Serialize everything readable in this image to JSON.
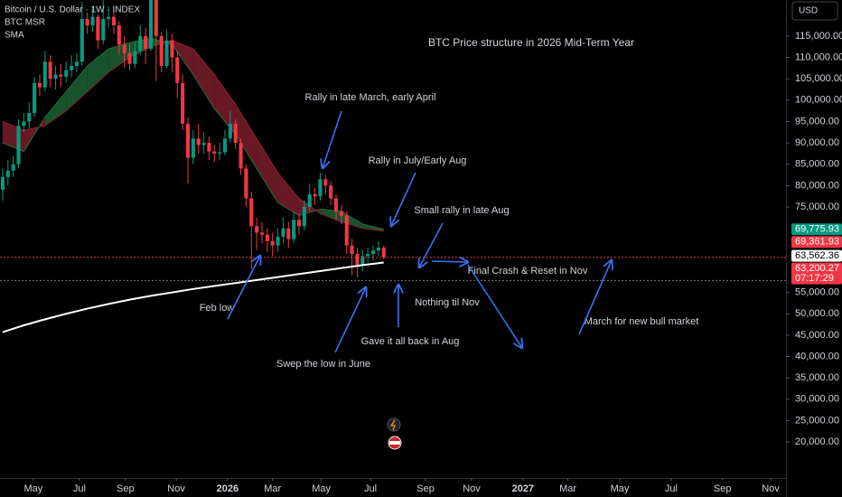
{
  "chart_data": {
    "type": "candlestick",
    "symbol": "Bitcoin / U.S. Dollar · 1W · INDEX",
    "currency": "USD",
    "title": "BTC Price structure in 2026 Mid-Term Year",
    "up_color": "#089981",
    "down_color": "#f23645",
    "open": [
      79000,
      82000,
      83500,
      85000,
      94000,
      95000,
      97000,
      104000,
      103000,
      109000,
      105000,
      106000,
      105500,
      107000,
      108000,
      109000,
      119000,
      117500,
      119500,
      114000,
      119000,
      119500,
      117500,
      113000,
      111000,
      108500,
      111500,
      115000,
      112000,
      123500,
      115000,
      108000,
      114000,
      110000,
      104000,
      94500,
      86500,
      91000,
      89500,
      90000,
      88000,
      87500,
      87800,
      91000,
      94500,
      90000,
      84000,
      77000,
      70500,
      69000,
      68500,
      67000,
      66000,
      68000,
      70000,
      67500,
      72000,
      70500,
      75000,
      78000,
      77500,
      81500,
      80000,
      77000,
      74000,
      73000,
      66000,
      64000,
      61500,
      63500,
      64000,
      64800,
      65500
    ],
    "high": [
      84000,
      86000,
      87000,
      95500,
      97000,
      99500,
      105500,
      106000,
      111500,
      110500,
      108000,
      108500,
      109000,
      110500,
      111000,
      123000,
      120500,
      122000,
      120000,
      124000,
      122000,
      121000,
      118500,
      115000,
      113000,
      113500,
      117500,
      117000,
      126000,
      124500,
      116000,
      116500,
      115500,
      111500,
      106000,
      96000,
      93000,
      94500,
      92500,
      91500,
      89500,
      90000,
      93000,
      97500,
      95500,
      91000,
      85000,
      78500,
      72500,
      71500,
      70000,
      69000,
      70000,
      72500,
      71500,
      74000,
      73500,
      76500,
      80500,
      79500,
      83000,
      82500,
      81000,
      78000,
      75500,
      74000,
      67500,
      65500,
      65000,
      65500,
      66000,
      67000,
      66000
    ],
    "low": [
      76500,
      80000,
      82000,
      84000,
      92500,
      93500,
      96000,
      101000,
      102000,
      103000,
      102500,
      103000,
      104000,
      105500,
      106500,
      108000,
      115500,
      116000,
      112000,
      113000,
      117000,
      115500,
      110500,
      107500,
      107000,
      107500,
      110500,
      108500,
      111500,
      104500,
      106500,
      107500,
      106500,
      100500,
      93000,
      80500,
      85000,
      87500,
      87500,
      86000,
      85500,
      86000,
      87000,
      90000,
      88500,
      82500,
      75000,
      60500,
      65000,
      66500,
      64500,
      63500,
      64500,
      66500,
      65500,
      66500,
      68500,
      69500,
      74000,
      75500,
      76500,
      78000,
      75500,
      72000,
      71000,
      64000,
      59000,
      58500,
      60000,
      62000,
      62500,
      63500,
      62800
    ],
    "close": [
      82000,
      83500,
      85000,
      94000,
      95000,
      97000,
      104000,
      103000,
      109000,
      105000,
      106000,
      105500,
      107000,
      108000,
      109000,
      119000,
      117500,
      119500,
      114000,
      119000,
      119500,
      117500,
      113000,
      111000,
      108500,
      111500,
      115000,
      112000,
      123500,
      115000,
      108000,
      114000,
      110000,
      104000,
      94500,
      86500,
      91000,
      89500,
      90000,
      88000,
      87500,
      87800,
      91000,
      94500,
      90000,
      84000,
      77000,
      70500,
      69000,
      68500,
      67000,
      66000,
      68000,
      70000,
      67500,
      72000,
      70500,
      75000,
      78000,
      77500,
      81500,
      80000,
      77000,
      74000,
      73000,
      66000,
      64000,
      61500,
      63500,
      64000,
      64800,
      65500,
      63200.27
    ],
    "indicators": [
      {
        "name": "BTC MSR",
        "x": [
          0,
          4,
          8,
          12,
          16,
          20,
          24,
          28,
          32,
          36,
          40,
          44,
          48,
          52,
          56,
          60,
          64,
          68,
          72
        ],
        "fast": [
          90000,
          88000,
          96000,
          102000,
          108000,
          112000,
          113500,
          114500,
          113000,
          106000,
          98000,
          92000,
          84000,
          76000,
          73000,
          74500,
          74000,
          71000,
          69775.93
        ],
        "slow": [
          95000,
          93000,
          94000,
          97500,
          102000,
          106500,
          110000,
          112500,
          114000,
          112000,
          106000,
          99000,
          91000,
          83000,
          77000,
          73500,
          71500,
          70000,
          69361.93
        ],
        "colors": [
          "#1f6e3a",
          "#8c2230"
        ]
      },
      {
        "name": "SMA",
        "x": [
          0,
          4,
          8,
          12,
          16,
          20,
          24,
          28,
          32,
          36,
          40,
          44,
          48,
          52,
          56,
          60,
          64,
          68,
          72
        ],
        "values": [
          45700,
          47300,
          48700,
          50000,
          51200,
          52300,
          53300,
          54200,
          55000,
          55800,
          56500,
          57200,
          57900,
          58600,
          59300,
          60000,
          60700,
          61400,
          62000
        ],
        "color": "#ffffff"
      }
    ],
    "reference_lines": [
      57800
    ],
    "price_labels": [
      {
        "value": 69775.93,
        "label": "69,775.93",
        "color": "#089981"
      },
      {
        "value": 69361.93,
        "label": "69,361.93",
        "color": "#f23645"
      },
      {
        "value": 63562.36,
        "label": "63,562.36",
        "color": "#ffffff"
      },
      {
        "value": 63200.27,
        "label": "63,200.27",
        "color": "#f23645",
        "countdown": "07:17:29"
      }
    ],
    "ylim": [
      11560,
      123440
    ],
    "yticks": [
      {
        "value": 20000,
        "label": "20,000.00"
      },
      {
        "value": 25000,
        "label": "25,000.00"
      },
      {
        "value": 30000,
        "label": "30,000.00"
      },
      {
        "value": 35000,
        "label": "35,000.00"
      },
      {
        "value": 40000,
        "label": "40,000.00"
      },
      {
        "value": 45000,
        "label": "45,000.00"
      },
      {
        "value": 50000,
        "label": "50,000.00"
      },
      {
        "value": 55000,
        "label": "55,000.00"
      },
      {
        "value": 75000,
        "label": "75,000.00"
      },
      {
        "value": 80000,
        "label": "80,000.00"
      },
      {
        "value": 85000,
        "label": "85,000.00"
      },
      {
        "value": 90000,
        "label": "90,000.00"
      },
      {
        "value": 95000,
        "label": "95,000.00"
      },
      {
        "value": 100000,
        "label": "100,000.00"
      },
      {
        "value": 105000,
        "label": "105,000.00"
      },
      {
        "value": 110000,
        "label": "110,000.00"
      },
      {
        "value": 115000,
        "label": "115,000.00"
      }
    ],
    "xlim": [
      -0.5,
      148
    ],
    "xticks": [
      {
        "value": 5.8,
        "label": "May"
      },
      {
        "value": 14.5,
        "label": "Jul"
      },
      {
        "value": 23.2,
        "label": "Sep"
      },
      {
        "value": 32.8,
        "label": "Nov"
      },
      {
        "value": 42.5,
        "label": "2026"
      },
      {
        "value": 51.0,
        "label": "Mar"
      },
      {
        "value": 60.2,
        "label": "May"
      },
      {
        "value": 69.5,
        "label": "Jul"
      },
      {
        "value": 79.9,
        "label": "Sep"
      },
      {
        "value": 88.6,
        "label": "Nov"
      },
      {
        "value": 98.3,
        "label": "2027"
      },
      {
        "value": 106.8,
        "label": "Mar"
      },
      {
        "value": 116.6,
        "label": "May"
      },
      {
        "value": 126.3,
        "label": "Jul"
      },
      {
        "value": 136.0,
        "label": "Sep"
      },
      {
        "value": 145.1,
        "label": "Nov"
      }
    ],
    "annotations": [
      "Rally in late March, early April",
      "Rally in July/Early Aug",
      "Small rally in late Aug",
      "Final Crash & Reset in Nov",
      "Nothing til Nov",
      "Feb low",
      "March for new bull market",
      "Gave it all back in Aug",
      "Swep the low in June"
    ]
  }
}
